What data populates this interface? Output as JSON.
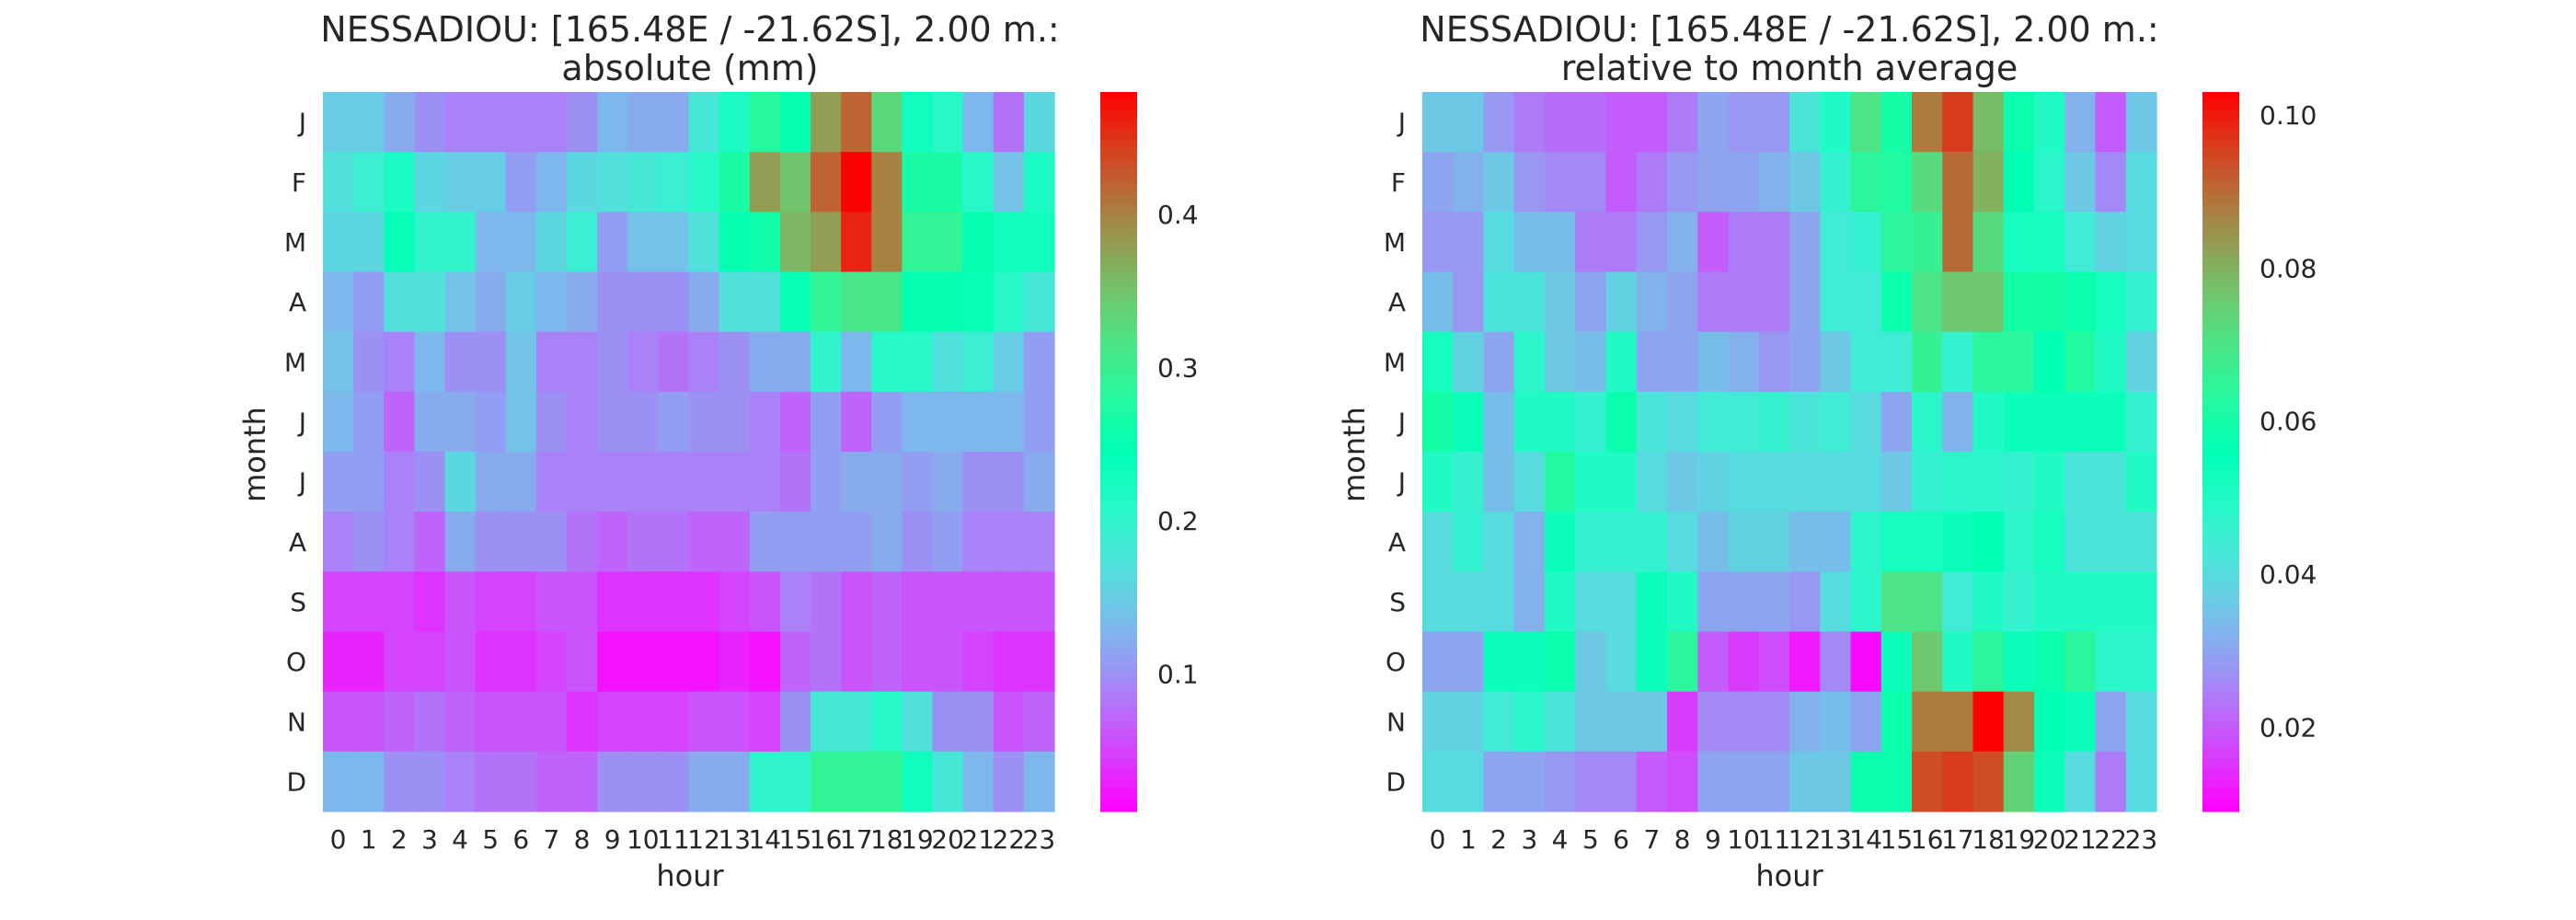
{
  "chart_data": [
    {
      "type": "heatmap",
      "title": "NESSADIOU: [165.48E / -21.62S], 2.00 m.:",
      "subtitle": "absolute (mm)",
      "xlabel": "hour",
      "ylabel": "month",
      "x": [
        "0",
        "1",
        "2",
        "3",
        "4",
        "5",
        "6",
        "7",
        "8",
        "9",
        "10",
        "11",
        "12",
        "13",
        "14",
        "15",
        "16",
        "17",
        "18",
        "19",
        "20",
        "21",
        "22",
        "23"
      ],
      "y": [
        "J",
        "F",
        "M",
        "A",
        "M",
        "J",
        "J",
        "A",
        "S",
        "O",
        "N",
        "D"
      ],
      "colormap": "rainbow",
      "vmin": 0.01,
      "vmax": 0.48,
      "colorbar_ticks": [
        "0.1",
        "0.2",
        "0.3",
        "0.4"
      ],
      "colorbar_tick_values": [
        0.1,
        0.2,
        0.3,
        0.4
      ],
      "values": [
        [
          0.15,
          0.15,
          0.12,
          0.1,
          0.09,
          0.09,
          0.09,
          0.09,
          0.1,
          0.13,
          0.12,
          0.12,
          0.18,
          0.22,
          0.28,
          0.25,
          0.38,
          0.42,
          0.33,
          0.23,
          0.21,
          0.13,
          0.08,
          0.16
        ],
        [
          0.17,
          0.19,
          0.22,
          0.16,
          0.15,
          0.15,
          0.11,
          0.13,
          0.16,
          0.17,
          0.18,
          0.19,
          0.21,
          0.27,
          0.38,
          0.35,
          0.42,
          0.48,
          0.4,
          0.27,
          0.27,
          0.21,
          0.14,
          0.22
        ],
        [
          0.16,
          0.16,
          0.24,
          0.2,
          0.2,
          0.13,
          0.13,
          0.16,
          0.19,
          0.11,
          0.14,
          0.14,
          0.17,
          0.25,
          0.26,
          0.36,
          0.38,
          0.46,
          0.4,
          0.29,
          0.29,
          0.25,
          0.23,
          0.23
        ],
        [
          0.13,
          0.11,
          0.17,
          0.17,
          0.14,
          0.12,
          0.15,
          0.13,
          0.12,
          0.1,
          0.1,
          0.1,
          0.12,
          0.17,
          0.17,
          0.24,
          0.29,
          0.31,
          0.31,
          0.25,
          0.25,
          0.24,
          0.21,
          0.18
        ],
        [
          0.14,
          0.1,
          0.09,
          0.13,
          0.1,
          0.1,
          0.14,
          0.09,
          0.09,
          0.1,
          0.09,
          0.08,
          0.09,
          0.1,
          0.12,
          0.12,
          0.2,
          0.13,
          0.21,
          0.21,
          0.17,
          0.19,
          0.15,
          0.11
        ],
        [
          0.13,
          0.11,
          0.07,
          0.12,
          0.12,
          0.11,
          0.14,
          0.1,
          0.09,
          0.1,
          0.1,
          0.11,
          0.1,
          0.1,
          0.09,
          0.07,
          0.11,
          0.07,
          0.11,
          0.13,
          0.13,
          0.13,
          0.13,
          0.11
        ],
        [
          0.11,
          0.11,
          0.09,
          0.1,
          0.16,
          0.12,
          0.12,
          0.09,
          0.09,
          0.09,
          0.09,
          0.09,
          0.09,
          0.09,
          0.09,
          0.08,
          0.11,
          0.12,
          0.12,
          0.11,
          0.12,
          0.1,
          0.1,
          0.12
        ],
        [
          0.09,
          0.1,
          0.09,
          0.07,
          0.12,
          0.1,
          0.1,
          0.1,
          0.08,
          0.07,
          0.08,
          0.08,
          0.07,
          0.07,
          0.11,
          0.11,
          0.11,
          0.11,
          0.12,
          0.1,
          0.11,
          0.09,
          0.09,
          0.09
        ],
        [
          0.05,
          0.05,
          0.05,
          0.04,
          0.06,
          0.05,
          0.05,
          0.06,
          0.06,
          0.04,
          0.04,
          0.04,
          0.04,
          0.05,
          0.06,
          0.09,
          0.08,
          0.06,
          0.07,
          0.06,
          0.06,
          0.06,
          0.06,
          0.06
        ],
        [
          0.03,
          0.03,
          0.05,
          0.05,
          0.06,
          0.04,
          0.04,
          0.05,
          0.06,
          0.02,
          0.02,
          0.02,
          0.02,
          0.03,
          0.02,
          0.07,
          0.08,
          0.06,
          0.07,
          0.06,
          0.06,
          0.05,
          0.04,
          0.04
        ],
        [
          0.06,
          0.06,
          0.07,
          0.08,
          0.07,
          0.06,
          0.06,
          0.06,
          0.04,
          0.05,
          0.05,
          0.05,
          0.06,
          0.06,
          0.05,
          0.1,
          0.18,
          0.18,
          0.21,
          0.17,
          0.1,
          0.1,
          0.06,
          0.07
        ],
        [
          0.13,
          0.13,
          0.1,
          0.1,
          0.09,
          0.08,
          0.08,
          0.07,
          0.07,
          0.1,
          0.1,
          0.1,
          0.12,
          0.12,
          0.2,
          0.2,
          0.29,
          0.29,
          0.29,
          0.23,
          0.18,
          0.13,
          0.1,
          0.13
        ]
      ]
    },
    {
      "type": "heatmap",
      "title": "NESSADIOU: [165.48E / -21.62S], 2.00 m.:",
      "subtitle": "relative to month average",
      "xlabel": "hour",
      "ylabel": "month",
      "x": [
        "0",
        "1",
        "2",
        "3",
        "4",
        "5",
        "6",
        "7",
        "8",
        "9",
        "10",
        "11",
        "12",
        "13",
        "14",
        "15",
        "16",
        "17",
        "18",
        "19",
        "20",
        "21",
        "22",
        "23"
      ],
      "y": [
        "J",
        "F",
        "M",
        "A",
        "M",
        "J",
        "J",
        "A",
        "S",
        "O",
        "N",
        "D"
      ],
      "colormap": "rainbow",
      "vmin": 0.009,
      "vmax": 0.103,
      "colorbar_ticks": [
        "0.02",
        "0.04",
        "0.06",
        "0.08",
        "0.10"
      ],
      "colorbar_tick_values": [
        0.02,
        0.04,
        0.06,
        0.08,
        0.1
      ],
      "values": [
        [
          0.036,
          0.036,
          0.028,
          0.024,
          0.022,
          0.022,
          0.02,
          0.02,
          0.024,
          0.03,
          0.028,
          0.028,
          0.042,
          0.05,
          0.07,
          0.06,
          0.088,
          0.096,
          0.078,
          0.058,
          0.05,
          0.032,
          0.02,
          0.036
        ],
        [
          0.03,
          0.032,
          0.036,
          0.028,
          0.026,
          0.026,
          0.02,
          0.024,
          0.028,
          0.03,
          0.03,
          0.032,
          0.036,
          0.046,
          0.064,
          0.062,
          0.072,
          0.09,
          0.08,
          0.056,
          0.048,
          0.036,
          0.026,
          0.04
        ],
        [
          0.028,
          0.028,
          0.04,
          0.034,
          0.034,
          0.024,
          0.024,
          0.028,
          0.032,
          0.02,
          0.024,
          0.024,
          0.03,
          0.044,
          0.046,
          0.064,
          0.066,
          0.09,
          0.072,
          0.052,
          0.052,
          0.044,
          0.038,
          0.04
        ],
        [
          0.034,
          0.028,
          0.042,
          0.042,
          0.036,
          0.03,
          0.038,
          0.032,
          0.03,
          0.024,
          0.024,
          0.024,
          0.03,
          0.044,
          0.044,
          0.058,
          0.07,
          0.076,
          0.076,
          0.06,
          0.06,
          0.058,
          0.052,
          0.046
        ],
        [
          0.052,
          0.038,
          0.03,
          0.048,
          0.036,
          0.034,
          0.05,
          0.03,
          0.03,
          0.034,
          0.032,
          0.028,
          0.03,
          0.036,
          0.044,
          0.044,
          0.066,
          0.046,
          0.064,
          0.064,
          0.056,
          0.062,
          0.05,
          0.038
        ],
        [
          0.06,
          0.054,
          0.034,
          0.05,
          0.05,
          0.046,
          0.058,
          0.042,
          0.04,
          0.044,
          0.044,
          0.046,
          0.042,
          0.044,
          0.04,
          0.03,
          0.048,
          0.032,
          0.05,
          0.054,
          0.054,
          0.054,
          0.054,
          0.046
        ],
        [
          0.05,
          0.046,
          0.034,
          0.04,
          0.062,
          0.05,
          0.05,
          0.04,
          0.036,
          0.038,
          0.04,
          0.04,
          0.04,
          0.04,
          0.04,
          0.036,
          0.046,
          0.048,
          0.048,
          0.046,
          0.05,
          0.042,
          0.042,
          0.05
        ],
        [
          0.04,
          0.046,
          0.04,
          0.032,
          0.054,
          0.046,
          0.046,
          0.046,
          0.04,
          0.034,
          0.038,
          0.038,
          0.034,
          0.034,
          0.048,
          0.052,
          0.052,
          0.054,
          0.056,
          0.048,
          0.052,
          0.042,
          0.042,
          0.042
        ],
        [
          0.04,
          0.04,
          0.04,
          0.032,
          0.05,
          0.04,
          0.04,
          0.054,
          0.05,
          0.03,
          0.03,
          0.03,
          0.028,
          0.04,
          0.048,
          0.07,
          0.07,
          0.044,
          0.05,
          0.046,
          0.05,
          0.05,
          0.05,
          0.05
        ],
        [
          0.03,
          0.03,
          0.054,
          0.054,
          0.058,
          0.036,
          0.04,
          0.054,
          0.064,
          0.02,
          0.016,
          0.018,
          0.012,
          0.026,
          0.01,
          0.054,
          0.076,
          0.05,
          0.064,
          0.054,
          0.058,
          0.064,
          0.048,
          0.048
        ],
        [
          0.038,
          0.038,
          0.044,
          0.048,
          0.042,
          0.036,
          0.036,
          0.036,
          0.016,
          0.026,
          0.026,
          0.026,
          0.032,
          0.034,
          0.03,
          0.058,
          0.088,
          0.088,
          0.103,
          0.086,
          0.056,
          0.054,
          0.03,
          0.04
        ],
        [
          0.04,
          0.04,
          0.03,
          0.03,
          0.028,
          0.026,
          0.026,
          0.02,
          0.018,
          0.03,
          0.03,
          0.03,
          0.036,
          0.036,
          0.058,
          0.058,
          0.094,
          0.096,
          0.094,
          0.074,
          0.054,
          0.04,
          0.024,
          0.04
        ]
      ]
    }
  ]
}
